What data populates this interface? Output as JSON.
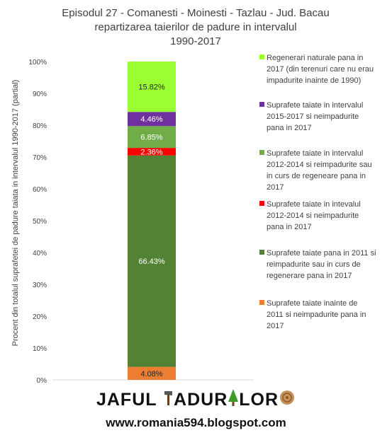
{
  "chart_data": {
    "type": "bar",
    "stacked": true,
    "title_lines": [
      "Episodul 27 - Comanesti - Moinesti - Tazlau - Jud. Bacau",
      "repartizarea taierilor de padure in intervalul",
      "1990-2017"
    ],
    "ylabel": "Procent din totalul suprafetei de padure taiata in intervalul 1990-2017 (partial)",
    "ylim": [
      0,
      100
    ],
    "yticks": [
      "0%",
      "10%",
      "20%",
      "30%",
      "40%",
      "50%",
      "60%",
      "70%",
      "80%",
      "90%",
      "100%"
    ],
    "grid": false,
    "legend_position": "right",
    "series": [
      {
        "name": "Suprafete taiate inainte de 2011 si neimpadurite pana in 2017",
        "value": 4.08,
        "label": "4.08%",
        "color": "#ED7D31",
        "label_color": "#262626"
      },
      {
        "name": "Suprafete taiate pana in 2011 si reimpadurite sau in curs de regenerare pana in 2017",
        "value": 66.43,
        "label": "66.43%",
        "color": "#548235",
        "label_color": "#ffffff"
      },
      {
        "name": "Suprafete taiate in intevalul 2012-2014 si neimpadurite pana in 2017",
        "value": 2.36,
        "label": "2.36%",
        "color": "#FF0000",
        "label_color": "#ffffff"
      },
      {
        "name": "Suprafete taiate in intervalul 2012-2014 si reimpadurite sau in curs de regeneare pana in 2017",
        "value": 6.85,
        "label": "6.85%",
        "color": "#70AD47",
        "label_color": "#ffffff"
      },
      {
        "name": "Suprafete taiate in intervalul 2015-2017 si neimpadurite pana in 2017",
        "value": 4.46,
        "label": "4.46%",
        "color": "#7030A0",
        "label_color": "#ffffff"
      },
      {
        "name": "Regenerari naturale pana in 2017 (din terenuri care nu erau impadurite inainte de 1990)",
        "value": 15.82,
        "label": "15.82%",
        "color": "#99FF33",
        "label_color": "#262626"
      }
    ],
    "legend": [
      {
        "color": "#99FF33",
        "lines": [
          "Regenerari naturale pana in",
          "2017 (din terenuri care nu erau",
          "impadurite inainte de 1990)"
        ]
      },
      {
        "color": "#7030A0",
        "lines": [
          "Suprafete taiate in intervalul",
          "2015-2017 si neimpadurite",
          "pana in 2017"
        ]
      },
      {
        "color": "#70AD47",
        "lines": [
          "Suprafete taiate in intervalul",
          "2012-2014 si reimpadurite sau",
          "in curs de regeneare pana in",
          "2017"
        ]
      },
      {
        "color": "#FF0000",
        "lines": [
          "Suprafete taiate in intevalul",
          "2012-2014 si neimpadurite",
          "pana in 2017"
        ]
      },
      {
        "color": "#548235",
        "lines": [
          "Suprafete taiate pana in 2011 si",
          "reimpadurite sau in curs de",
          "regenerare pana in 2017"
        ]
      },
      {
        "color": "#ED7D31",
        "lines": [
          "Suprafete taiate inainte de",
          "2011 si neimpadurite pana in",
          "2017"
        ]
      }
    ]
  },
  "footer": {
    "logo_text_left": "JAFUL ",
    "logo_text_right": "ADUR",
    "logo_text_end": "LOR",
    "url": "www.romania594.blogspot.com"
  }
}
